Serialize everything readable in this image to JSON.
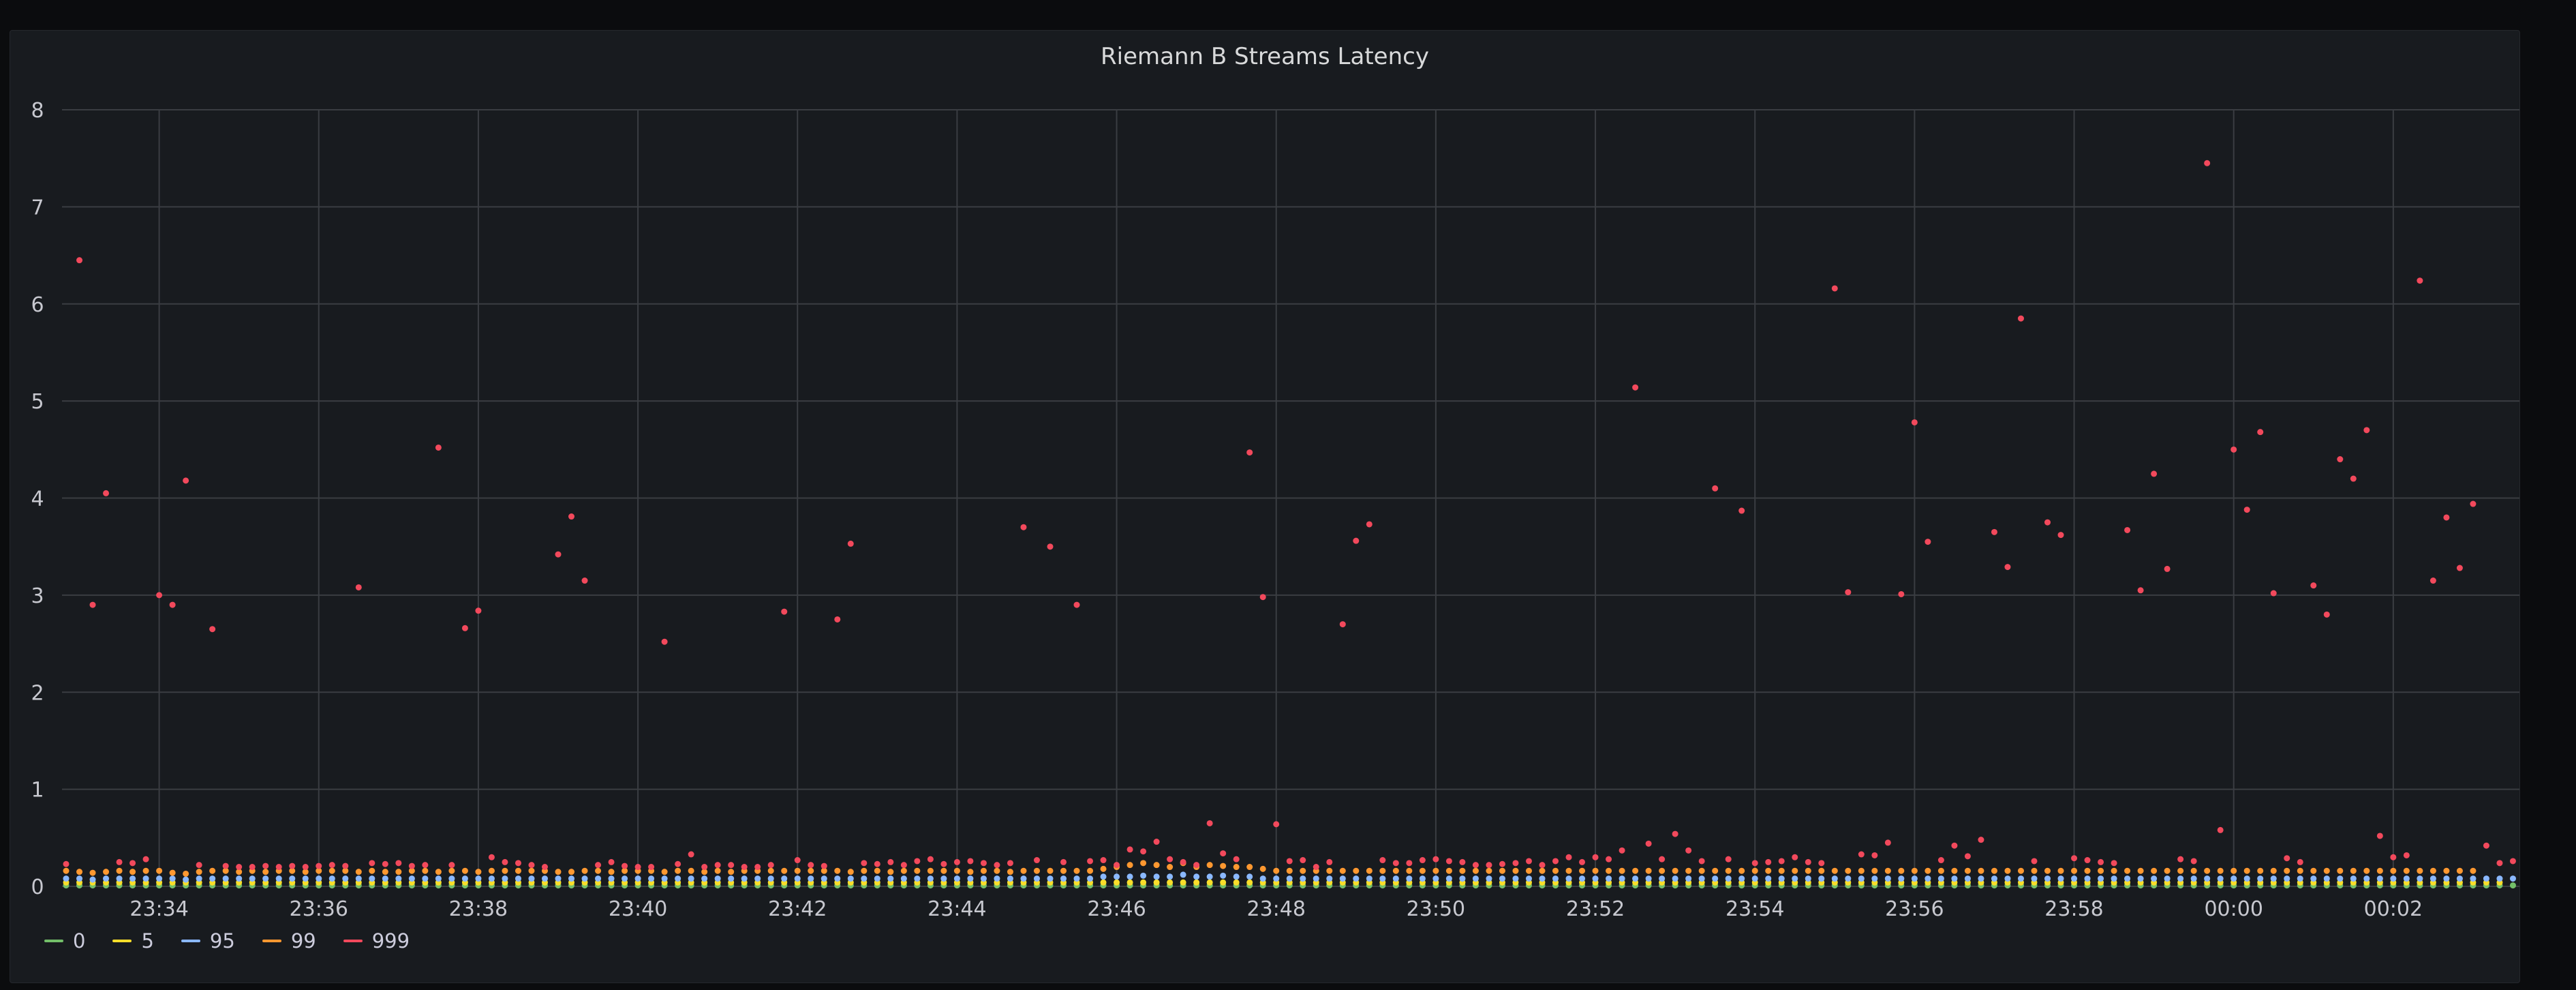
{
  "panel": {
    "title": "Riemann B Streams Latency"
  },
  "chart_data": {
    "type": "scatter",
    "title": "Riemann B Streams Latency",
    "xlabel": "",
    "ylabel": "",
    "ylim": [
      0,
      8
    ],
    "y_ticks": [
      "0",
      "1",
      "2",
      "3",
      "4",
      "5",
      "6",
      "7",
      "8"
    ],
    "x_ticks": [
      "23:34",
      "23:36",
      "23:38",
      "23:40",
      "23:42",
      "23:44",
      "23:46",
      "23:48",
      "23:50",
      "23:52",
      "23:54",
      "23:56",
      "23:58",
      "00:00",
      "00:02"
    ],
    "grid": true,
    "legend_position": "bottom-left",
    "x_interval_seconds": 10,
    "x_start": "23:32:50",
    "series": [
      {
        "name": "0",
        "color": "#73bf69",
        "values": [
          0.01,
          0.01,
          0.01,
          0.01,
          0.01,
          0.01,
          0.01,
          0.01,
          0.01,
          0.01,
          0.01,
          0.01,
          0.01,
          0.01,
          0.01,
          0.01,
          0.01,
          0.01,
          0.01,
          0.01,
          0.01,
          0.01,
          0.01,
          0.01,
          0.01,
          0.01,
          0.01,
          0.01,
          0.01,
          0.01,
          0.01,
          0.01,
          0.01,
          0.01,
          0.01,
          0.01,
          0.01,
          0.01,
          0.01,
          0.01,
          0.01,
          0.01,
          0.01,
          0.01,
          0.01,
          0.01,
          0.01,
          0.01,
          0.01,
          0.01,
          0.01,
          0.01,
          0.01,
          0.01,
          0.01,
          0.01,
          0.01,
          0.01,
          0.01,
          0.01,
          0.01,
          0.01,
          0.01,
          0.01,
          0.01,
          0.01,
          0.01,
          0.01,
          0.01,
          0.01,
          0.01,
          0.01,
          0.01,
          0.01,
          0.01,
          0.01,
          0.01,
          0.01,
          0.01,
          0.01,
          0.01,
          0.01,
          0.01,
          0.01,
          0.01,
          0.01,
          0.01,
          0.01,
          0.01,
          0.01,
          0.01,
          0.01,
          0.01,
          0.01,
          0.01,
          0.01,
          0.01,
          0.01,
          0.01,
          0.01,
          0.01,
          0.01,
          0.01,
          0.01,
          0.01,
          0.01,
          0.01,
          0.01,
          0.01,
          0.01,
          0.01,
          0.01,
          0.01,
          0.01,
          0.01,
          0.01,
          0.01,
          0.01,
          0.01,
          0.01,
          0.01,
          0.01,
          0.01,
          0.01,
          0.01,
          0.01,
          0.01,
          0.01,
          0.01,
          0.01,
          0.01,
          0.01,
          0.01,
          0.01,
          0.01,
          0.01,
          0.01,
          0.01,
          0.01,
          0.01,
          0.01,
          0.01,
          0.01,
          0.01,
          0.01,
          0.01,
          0.01,
          0.01,
          0.01,
          0.01,
          0.01,
          0.01,
          0.01,
          0.01,
          0.01,
          0.01,
          0.01,
          0.01,
          0.01,
          0.01,
          0.01,
          0.01,
          0.01,
          0.01,
          0.01,
          0.01,
          0.01,
          0.01,
          0.01,
          0.01,
          0.01,
          0.01,
          0.01,
          0.01,
          0.01,
          0.01,
          0.01,
          0.01,
          0.01,
          0.01,
          0.01,
          0.01,
          0.01,
          0.01,
          0.01,
          0.01
        ]
      },
      {
        "name": "5",
        "color": "#fade2a",
        "values": [
          0.04,
          0.04,
          0.04,
          0.04,
          0.04,
          0.04,
          0.04,
          0.04,
          0.04,
          0.04,
          0.04,
          0.04,
          0.04,
          0.04,
          0.04,
          0.04,
          0.04,
          0.04,
          0.04,
          0.04,
          0.04,
          0.04,
          0.04,
          0.04,
          0.04,
          0.04,
          0.04,
          0.04,
          0.04,
          0.04,
          0.04,
          0.04,
          0.04,
          0.04,
          0.04,
          0.04,
          0.04,
          0.04,
          0.04,
          0.04,
          0.04,
          0.04,
          0.04,
          0.04,
          0.04,
          0.04,
          0.04,
          0.04,
          0.04,
          0.04,
          0.04,
          0.04,
          0.04,
          0.04,
          0.04,
          0.04,
          0.04,
          0.04,
          0.04,
          0.04,
          0.04,
          0.04,
          0.04,
          0.04,
          0.04,
          0.04,
          0.04,
          0.04,
          0.04,
          0.04,
          0.04,
          0.04,
          0.04,
          0.04,
          0.04,
          0.04,
          0.04,
          0.04,
          0.04,
          0.04,
          0.04,
          0.04,
          0.04,
          0.04,
          0.04,
          0.04,
          0.04,
          0.04,
          0.04,
          0.04,
          0.04,
          0.04,
          0.04,
          0.04,
          0.04,
          0.04,
          0.04,
          0.04,
          0.04,
          0.04,
          0.04,
          0.04,
          0.04,
          0.04,
          0.04,
          0.04,
          0.04,
          0.04,
          0.04,
          0.04,
          0.04,
          0.04,
          0.04,
          0.04,
          0.04,
          0.04,
          0.04,
          0.04,
          0.04,
          0.04,
          0.04,
          0.04,
          0.04,
          0.04,
          0.04,
          0.04,
          0.04,
          0.04,
          0.04,
          0.04,
          0.04,
          0.04,
          0.04,
          0.04,
          0.04,
          0.04,
          0.04,
          0.04,
          0.04,
          0.04,
          0.04,
          0.04,
          0.04,
          0.04,
          0.04,
          0.04,
          0.04,
          0.04,
          0.04,
          0.04,
          0.04,
          0.04,
          0.04,
          0.04,
          0.04,
          0.04,
          0.04,
          0.04,
          0.04,
          0.04,
          0.04,
          0.04,
          0.04,
          0.04,
          0.04,
          0.04,
          0.04,
          0.04,
          0.04,
          0.04,
          0.04,
          0.04,
          0.04,
          0.04,
          0.04,
          0.04,
          0.04,
          0.04,
          0.04,
          0.04,
          0.04,
          0.04,
          0.04,
          0.04
        ]
      },
      {
        "name": "95",
        "color": "#8ab8ff",
        "values": [
          0.08,
          0.08,
          0.07,
          0.08,
          0.08,
          0.08,
          0.08,
          0.08,
          0.08,
          0.07,
          0.08,
          0.08,
          0.08,
          0.08,
          0.08,
          0.08,
          0.08,
          0.08,
          0.08,
          0.08,
          0.08,
          0.08,
          0.08,
          0.08,
          0.08,
          0.08,
          0.08,
          0.08,
          0.08,
          0.08,
          0.08,
          0.08,
          0.08,
          0.08,
          0.08,
          0.08,
          0.08,
          0.08,
          0.08,
          0.08,
          0.08,
          0.08,
          0.08,
          0.08,
          0.08,
          0.08,
          0.08,
          0.08,
          0.08,
          0.08,
          0.08,
          0.08,
          0.08,
          0.08,
          0.08,
          0.08,
          0.08,
          0.08,
          0.08,
          0.08,
          0.08,
          0.08,
          0.08,
          0.08,
          0.08,
          0.08,
          0.08,
          0.08,
          0.08,
          0.08,
          0.08,
          0.08,
          0.08,
          0.08,
          0.08,
          0.08,
          0.08,
          0.08,
          0.1,
          0.1,
          0.1,
          0.11,
          0.1,
          0.1,
          0.12,
          0.1,
          0.1,
          0.11,
          0.1,
          0.1,
          0.08,
          0.08,
          0.08,
          0.08,
          0.08,
          0.08,
          0.08,
          0.08,
          0.08,
          0.08,
          0.08,
          0.08,
          0.08,
          0.08,
          0.08,
          0.08,
          0.08,
          0.08,
          0.08,
          0.08,
          0.08,
          0.08,
          0.08,
          0.08,
          0.08,
          0.08,
          0.08,
          0.08,
          0.08,
          0.08,
          0.08,
          0.08,
          0.08,
          0.08,
          0.08,
          0.08,
          0.08,
          0.08,
          0.08,
          0.08,
          0.08,
          0.08,
          0.08,
          0.08,
          0.08,
          0.08,
          0.08,
          0.08,
          0.08,
          0.08,
          0.08,
          0.08,
          0.08,
          0.08,
          0.08,
          0.08,
          0.08,
          0.08,
          0.08,
          0.08,
          0.08,
          0.08,
          0.08,
          0.08,
          0.08,
          0.08,
          0.08,
          0.08,
          0.08,
          0.08,
          0.08,
          0.08,
          0.08,
          0.08,
          0.08,
          0.08,
          0.08,
          0.08,
          0.08,
          0.08,
          0.08,
          0.08,
          0.08,
          0.08,
          0.08,
          0.08,
          0.08,
          0.08,
          0.08,
          0.08,
          0.08,
          0.08,
          0.08,
          0.08,
          0.08,
          0.08
        ]
      },
      {
        "name": "99",
        "color": "#ff9830",
        "values": [
          0.16,
          0.15,
          0.14,
          0.15,
          0.16,
          0.15,
          0.16,
          0.16,
          0.14,
          0.13,
          0.15,
          0.16,
          0.16,
          0.15,
          0.16,
          0.15,
          0.16,
          0.16,
          0.15,
          0.16,
          0.16,
          0.16,
          0.15,
          0.16,
          0.15,
          0.15,
          0.16,
          0.16,
          0.15,
          0.16,
          0.16,
          0.15,
          0.16,
          0.16,
          0.16,
          0.16,
          0.16,
          0.15,
          0.15,
          0.16,
          0.16,
          0.15,
          0.16,
          0.16,
          0.16,
          0.15,
          0.16,
          0.16,
          0.15,
          0.16,
          0.15,
          0.16,
          0.16,
          0.16,
          0.16,
          0.16,
          0.16,
          0.16,
          0.16,
          0.15,
          0.16,
          0.16,
          0.15,
          0.16,
          0.16,
          0.16,
          0.16,
          0.16,
          0.15,
          0.16,
          0.16,
          0.15,
          0.16,
          0.16,
          0.16,
          0.16,
          0.16,
          0.16,
          0.18,
          0.2,
          0.22,
          0.24,
          0.22,
          0.2,
          0.24,
          0.2,
          0.22,
          0.21,
          0.2,
          0.2,
          0.18,
          0.16,
          0.16,
          0.16,
          0.16,
          0.16,
          0.16,
          0.16,
          0.16,
          0.16,
          0.16,
          0.16,
          0.16,
          0.16,
          0.16,
          0.16,
          0.16,
          0.16,
          0.16,
          0.16,
          0.16,
          0.16,
          0.16,
          0.16,
          0.16,
          0.16,
          0.16,
          0.16,
          0.16,
          0.16,
          0.16,
          0.16,
          0.16,
          0.16,
          0.16,
          0.16,
          0.16,
          0.16,
          0.16,
          0.16,
          0.16,
          0.16,
          0.16,
          0.16,
          0.16,
          0.16,
          0.16,
          0.16,
          0.16,
          0.16,
          0.16,
          0.16,
          0.16,
          0.16,
          0.16,
          0.16,
          0.16,
          0.16,
          0.16,
          0.16,
          0.16,
          0.16,
          0.16,
          0.16,
          0.16,
          0.16,
          0.16,
          0.16,
          0.16,
          0.16,
          0.16,
          0.16,
          0.16,
          0.16,
          0.16,
          0.16,
          0.16,
          0.16,
          0.16,
          0.16,
          0.16,
          0.16,
          0.16,
          0.16,
          0.16,
          0.16,
          0.16,
          0.16,
          0.16,
          0.16,
          0.16,
          0.16
        ]
      },
      {
        "name": "999",
        "color": "#f2495c",
        "values": [
          0.23,
          6.45,
          2.9,
          4.05,
          0.25,
          0.24,
          0.28,
          3.0,
          2.9,
          4.18,
          0.22,
          2.65,
          0.21,
          0.2,
          0.2,
          0.21,
          0.2,
          0.21,
          0.2,
          0.21,
          0.22,
          0.21,
          3.08,
          0.24,
          0.23,
          0.24,
          0.21,
          0.22,
          4.52,
          0.22,
          2.66,
          2.84,
          0.3,
          0.25,
          0.24,
          0.22,
          0.2,
          3.42,
          3.81,
          3.15,
          0.22,
          0.25,
          0.21,
          0.2,
          0.2,
          2.52,
          0.23,
          0.33,
          0.2,
          0.22,
          0.22,
          0.2,
          0.2,
          0.22,
          2.83,
          0.27,
          0.22,
          0.21,
          2.75,
          3.53,
          0.24,
          0.23,
          0.25,
          0.22,
          0.26,
          0.28,
          0.23,
          0.25,
          0.26,
          0.24,
          0.22,
          0.24,
          3.7,
          0.27,
          3.5,
          0.25,
          2.9,
          0.26,
          0.27,
          0.22,
          0.38,
          0.36,
          0.46,
          0.28,
          0.25,
          0.22,
          0.65,
          0.34,
          0.28,
          4.47,
          2.98,
          0.64,
          0.26,
          0.27,
          0.2,
          0.25,
          2.7,
          3.56,
          3.73,
          0.27,
          0.24,
          0.24,
          0.27,
          0.28,
          0.26,
          0.25,
          0.22,
          0.22,
          0.23,
          0.24,
          0.26,
          0.22,
          0.26,
          0.3,
          0.25,
          0.3,
          0.28,
          0.37,
          5.14,
          0.44,
          0.28,
          0.54,
          0.37,
          0.26,
          4.1,
          0.28,
          3.87,
          0.24,
          0.25,
          0.26,
          0.3,
          0.25,
          0.24,
          6.16,
          3.03,
          0.33,
          0.32,
          0.45,
          3.01,
          4.78,
          3.55,
          0.27,
          0.42,
          0.31,
          0.48,
          3.65,
          3.29,
          5.85,
          0.26,
          3.75,
          3.62,
          0.29,
          0.27,
          0.25,
          0.24,
          3.67,
          3.05,
          4.25,
          3.27,
          0.28,
          0.26,
          7.45,
          0.58,
          4.5,
          3.88,
          4.68,
          3.02,
          0.29,
          0.25,
          3.1,
          2.8,
          4.4,
          4.2,
          4.7,
          0.52,
          0.3,
          0.32,
          6.24,
          3.15,
          3.8,
          3.28,
          3.94,
          0.42,
          0.24,
          0.26,
          0.51,
          2.8,
          3.05,
          3.55,
          0.43
        ]
      }
    ]
  }
}
